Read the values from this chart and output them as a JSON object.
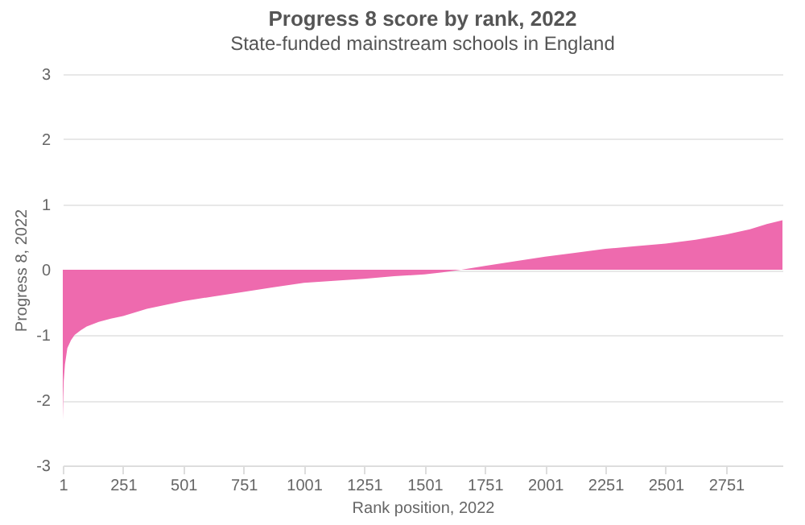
{
  "chart_data": {
    "type": "area",
    "title": "Progress 8 score by rank, 2022",
    "subtitle": "State-funded mainstream schools in England",
    "xlabel": "Rank position, 2022",
    "ylabel": "Progress 8, 2022",
    "x": [
      1,
      3,
      5,
      10,
      20,
      35,
      50,
      75,
      100,
      150,
      200,
      251,
      350,
      501,
      625,
      751,
      875,
      1001,
      1125,
      1251,
      1375,
      1501,
      1575,
      1653,
      1751,
      1875,
      2001,
      2125,
      2251,
      2375,
      2501,
      2625,
      2751,
      2850,
      2920,
      2985
    ],
    "series": [
      {
        "color": "#ee6aae",
        "values": [
          -2.3,
          -1.95,
          -1.7,
          -1.45,
          -1.2,
          -1.08,
          -1.0,
          -0.93,
          -0.87,
          -0.8,
          -0.75,
          -0.71,
          -0.6,
          -0.48,
          -0.41,
          -0.34,
          -0.27,
          -0.2,
          -0.17,
          -0.14,
          -0.1,
          -0.07,
          -0.04,
          0,
          0.06,
          0.13,
          0.2,
          0.26,
          0.32,
          0.36,
          0.4,
          0.46,
          0.54,
          0.62,
          0.7,
          0.76
        ]
      }
    ],
    "xlim": [
      1,
      2985
    ],
    "xticks": [
      1,
      251,
      501,
      751,
      1001,
      1251,
      1501,
      1751,
      2001,
      2251,
      2501,
      2751
    ],
    "ylim": [
      -3,
      3
    ],
    "yticks": [
      -3,
      -2,
      -1,
      0,
      1,
      2,
      3
    ],
    "grid": "y"
  }
}
